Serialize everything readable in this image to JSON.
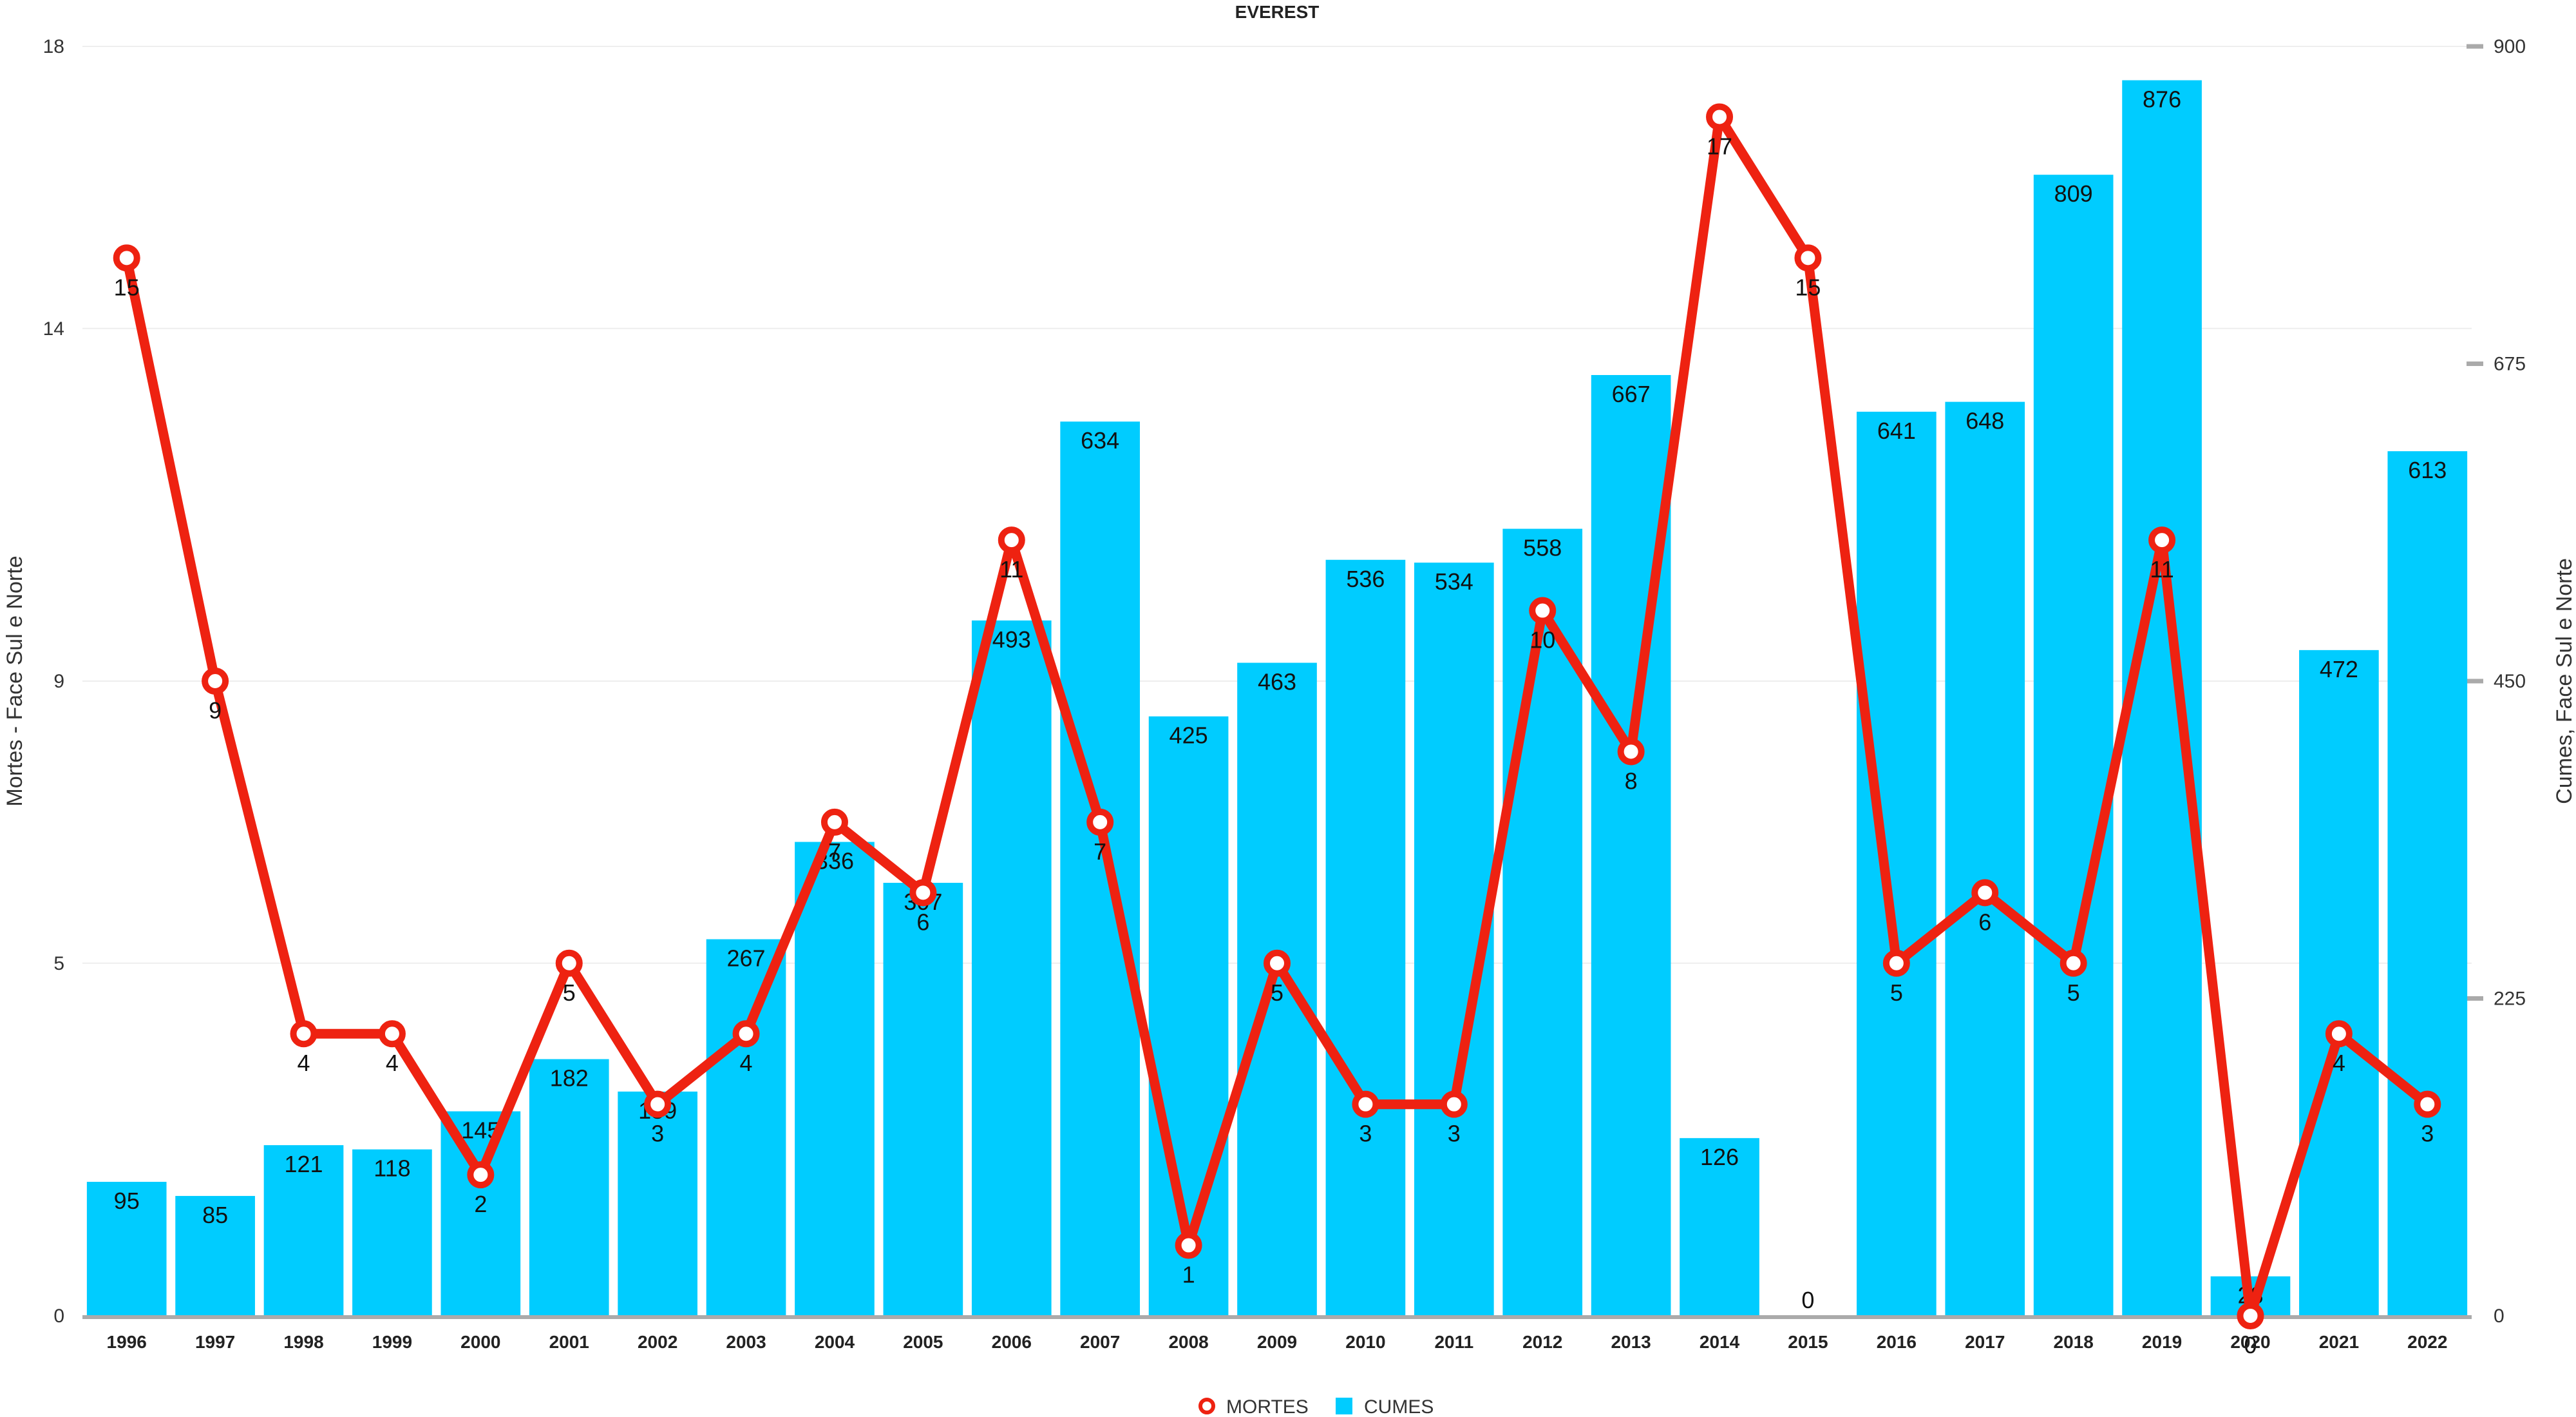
{
  "chart_data": {
    "type": "bar",
    "title": "EVEREST",
    "categories": [
      "1996",
      "1997",
      "1998",
      "1999",
      "2000",
      "2001",
      "2002",
      "2003",
      "2004",
      "2005",
      "2006",
      "2007",
      "2008",
      "2009",
      "2010",
      "2011",
      "2012",
      "2013",
      "2014",
      "2015",
      "2016",
      "2017",
      "2018",
      "2019",
      "2020",
      "2021",
      "2022"
    ],
    "series": [
      {
        "name": "CUMES",
        "type": "bar",
        "axis": "right",
        "color": "#00ccff",
        "values": [
          95,
          85,
          121,
          118,
          145,
          182,
          159,
          267,
          336,
          307,
          493,
          634,
          425,
          463,
          536,
          534,
          558,
          667,
          126,
          0,
          641,
          648,
          809,
          876,
          28,
          472,
          613
        ]
      },
      {
        "name": "MORTES",
        "type": "line",
        "axis": "left",
        "color": "#ee2211",
        "values": [
          15,
          9,
          4,
          4,
          2,
          5,
          3,
          4,
          7,
          6,
          11,
          7,
          1,
          5,
          3,
          3,
          10,
          8,
          17,
          15,
          5,
          6,
          5,
          11,
          0,
          4,
          3
        ]
      }
    ],
    "y_left": {
      "label": "Mortes - Face Sul e Norte",
      "range": [
        0,
        18
      ],
      "ticks": [
        0,
        5,
        9,
        14,
        18
      ]
    },
    "y_right": {
      "label": "Cumes, Face Sul e Norte",
      "range": [
        0,
        900
      ],
      "ticks": [
        0,
        225,
        450,
        675,
        900
      ]
    },
    "legend": {
      "placement": "bottom-center"
    },
    "grid": true
  }
}
